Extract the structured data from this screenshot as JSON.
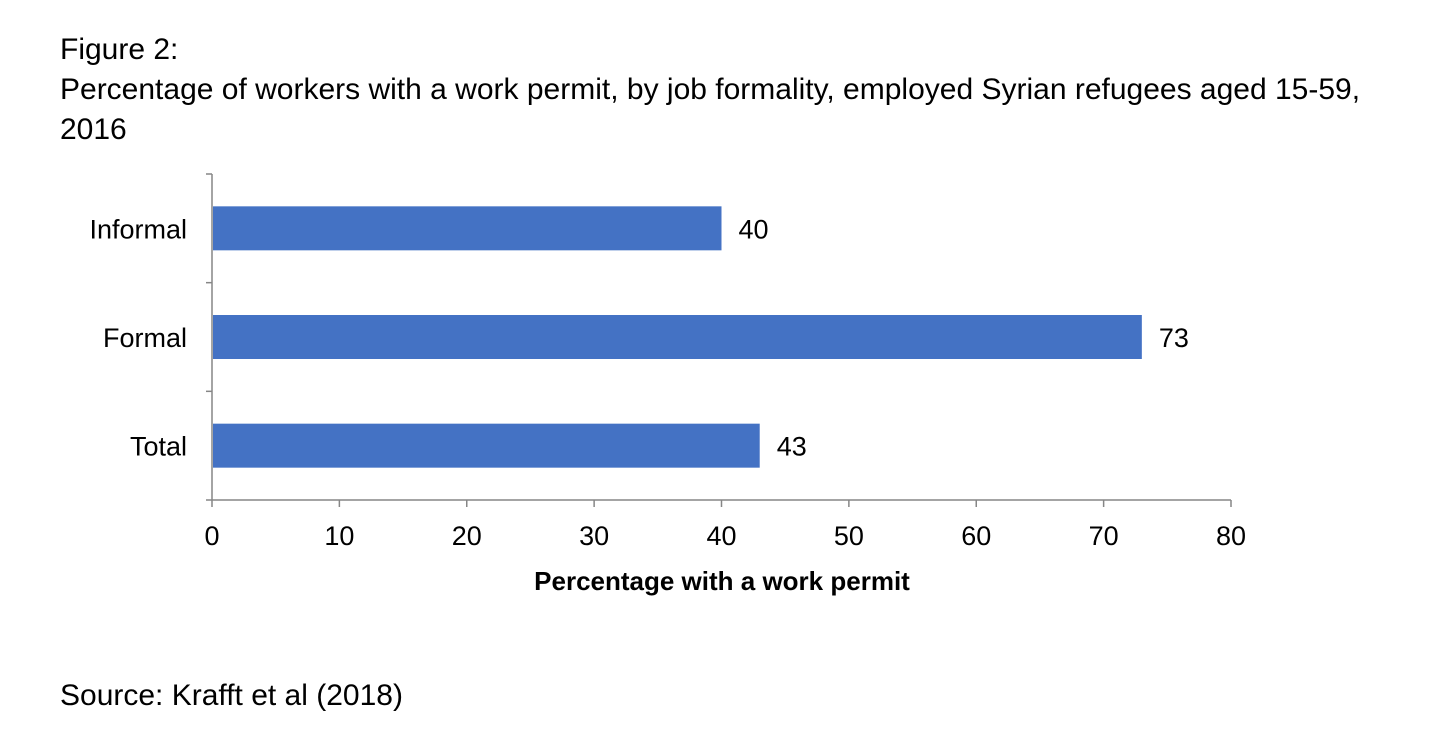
{
  "figure": {
    "label": "Figure 2:",
    "title": "Percentage of workers with a work permit, by job formality, employed Syrian refugees aged 15-59, 2016",
    "source": "Source: Krafft et al (2018)"
  },
  "chart_data": {
    "type": "bar",
    "orientation": "horizontal",
    "categories": [
      "Informal",
      "Formal",
      "Total"
    ],
    "values": [
      40,
      73,
      43
    ],
    "data_labels": [
      "40",
      "73",
      "43"
    ],
    "xlabel": "Percentage with a work permit",
    "ylabel": "",
    "xlim": [
      0,
      80
    ],
    "xticks": [
      0,
      10,
      20,
      30,
      40,
      50,
      60,
      70,
      80
    ],
    "grid": false,
    "bar_color": "#4472C4",
    "axis_color": "#868686"
  }
}
